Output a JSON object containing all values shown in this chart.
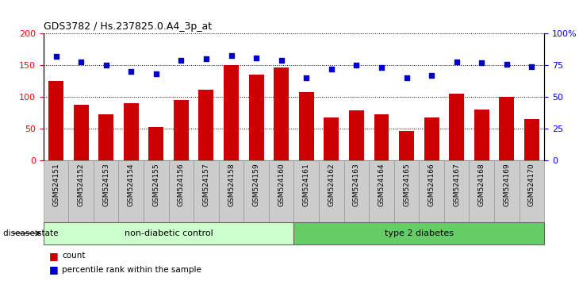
{
  "title": "GDS3782 / Hs.237825.0.A4_3p_at",
  "samples": [
    "GSM524151",
    "GSM524152",
    "GSM524153",
    "GSM524154",
    "GSM524155",
    "GSM524156",
    "GSM524157",
    "GSM524158",
    "GSM524159",
    "GSM524160",
    "GSM524161",
    "GSM524162",
    "GSM524163",
    "GSM524164",
    "GSM524165",
    "GSM524166",
    "GSM524167",
    "GSM524168",
    "GSM524169",
    "GSM524170"
  ],
  "counts": [
    125,
    88,
    72,
    90,
    53,
    95,
    111,
    150,
    135,
    147,
    108,
    68,
    79,
    72,
    46,
    68,
    105,
    80,
    100,
    65
  ],
  "percentiles": [
    82,
    78,
    75,
    70,
    68,
    79,
    80,
    83,
    81,
    79,
    65,
    72,
    75,
    73,
    65,
    67,
    78,
    77,
    76,
    74
  ],
  "non_diabetic_count": 10,
  "type2_count": 10,
  "bar_color": "#cc0000",
  "dot_color": "#0000cc",
  "left_ylim": [
    0,
    200
  ],
  "right_ylim": [
    0,
    100
  ],
  "left_yticks": [
    0,
    50,
    100,
    150,
    200
  ],
  "right_yticks": [
    0,
    25,
    50,
    75,
    100
  ],
  "right_yticklabels": [
    "0",
    "25",
    "50",
    "75",
    "100%"
  ],
  "bar_width": 0.6,
  "non_diabetic_color": "#ccffcc",
  "type2_color": "#66cc66",
  "tick_panel_color": "#cccccc",
  "tick_panel_edge": "#999999"
}
